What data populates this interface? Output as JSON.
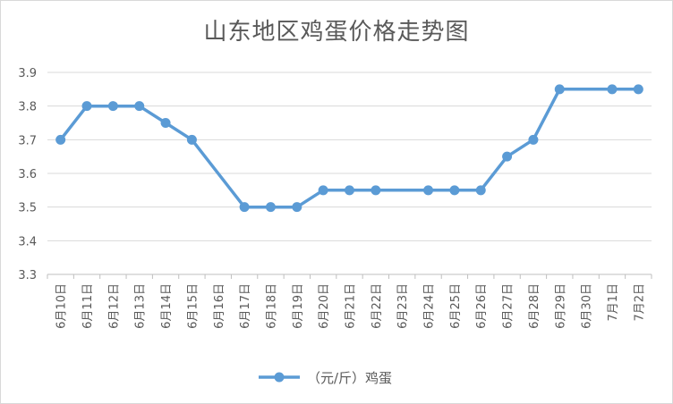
{
  "chart_data": {
    "type": "line",
    "title": "山东地区鸡蛋价格走势图",
    "xlabel": "",
    "ylabel": "",
    "ylim": [
      3.3,
      3.9
    ],
    "yticks": [
      "3.3",
      "3.4",
      "3.5",
      "3.6",
      "3.7",
      "3.8",
      "3.9"
    ],
    "grid": true,
    "legend_position": "bottom",
    "categories": [
      "6月10日",
      "6月11日",
      "6月12日",
      "6月13日",
      "6月14日",
      "6月15日",
      "6月16日",
      "6月17日",
      "6月18日",
      "6月19日",
      "6月20日",
      "6月21日",
      "6月22日",
      "6月23日",
      "6月24日",
      "6月25日",
      "6月26日",
      "6月27日",
      "6月28日",
      "6月29日",
      "6月30日",
      "7月1日",
      "7月2日"
    ],
    "series": [
      {
        "name": "（元/斤）鸡蛋",
        "color": "#5b9bd5",
        "values": [
          3.7,
          3.8,
          3.8,
          3.8,
          3.75,
          3.7,
          null,
          3.5,
          3.5,
          3.5,
          3.55,
          3.55,
          3.55,
          null,
          3.55,
          3.55,
          3.55,
          3.65,
          3.7,
          3.85,
          null,
          3.85,
          3.85
        ]
      }
    ]
  }
}
